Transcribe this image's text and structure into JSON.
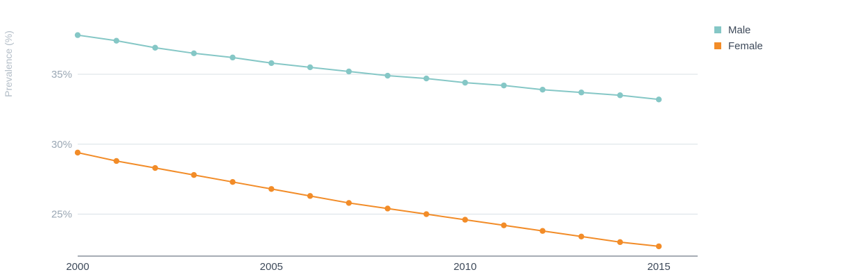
{
  "chart_data": {
    "type": "line",
    "ylabel": "Prevalence (%)",
    "x": [
      2000,
      2001,
      2002,
      2003,
      2004,
      2005,
      2006,
      2007,
      2008,
      2009,
      2010,
      2011,
      2012,
      2013,
      2014,
      2015
    ],
    "x_ticks": [
      2000,
      2005,
      2010,
      2015
    ],
    "x_tick_labels": [
      "2000",
      "2005",
      "2010",
      "2015"
    ],
    "y_ticks": [
      25,
      30,
      35
    ],
    "y_tick_labels": [
      "25%",
      "30%",
      "35%"
    ],
    "xlim": [
      2000,
      2016
    ],
    "ylim": [
      22.0,
      38.5
    ],
    "grid": true,
    "legend_position": "top-right",
    "series": [
      {
        "name": "Male",
        "color": "#85c7c6",
        "values": [
          37.8,
          37.4,
          36.9,
          36.5,
          36.2,
          35.8,
          35.5,
          35.2,
          34.9,
          34.7,
          34.4,
          34.2,
          33.9,
          33.7,
          33.5,
          33.2
        ]
      },
      {
        "name": "Female",
        "color": "#f28c28",
        "values": [
          29.4,
          28.8,
          28.3,
          27.8,
          27.3,
          26.8,
          26.3,
          25.8,
          25.4,
          25.0,
          24.6,
          24.2,
          23.8,
          23.4,
          23.0,
          22.7
        ]
      }
    ]
  }
}
